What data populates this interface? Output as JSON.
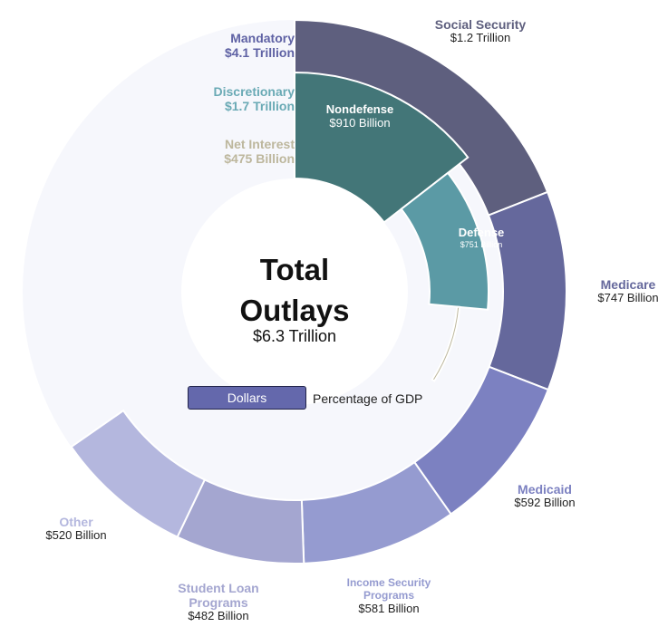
{
  "chart_data": {
    "type": "pie",
    "center": {
      "title_line1": "Total",
      "title_line2": "Outlays",
      "value": "$6.3 Trillion"
    },
    "toggle": {
      "active": "Dollars",
      "inactive": "Percentage of GDP"
    },
    "groups": [
      {
        "name": "Mandatory",
        "value_label": "$4.1 Trillion",
        "value": 4.1,
        "color": "#5f62a4"
      },
      {
        "name": "Discretionary",
        "value_label": "$1.7 Trillion",
        "value": 1.7,
        "color": "#6aaab5"
      },
      {
        "name": "Net Interest",
        "value_label": "$475 Billion",
        "value": 0.475,
        "color": "#bdb79d"
      }
    ],
    "inner_ring": [
      {
        "name": "Nondefense",
        "value_label": "$910 Billion",
        "value": 0.91,
        "color": "#437678"
      },
      {
        "name": "Defense",
        "value_label": "$751 Billion",
        "value": 0.751,
        "color": "#5b9aa5"
      },
      {
        "name": "Net Interest",
        "value_label": "$475 Billion",
        "value": 0.475,
        "color": "#bdb79d"
      }
    ],
    "outer_ring": [
      {
        "name": "Social Security",
        "value_label": "$1.2 Trillion",
        "value": 1.2,
        "color": "#5e5f7e"
      },
      {
        "name": "Medicare",
        "value_label": "$747 Billion",
        "value": 0.747,
        "color": "#65689c"
      },
      {
        "name": "Medicaid",
        "value_label": "$592 Billion",
        "value": 0.592,
        "color": "#7c81c1"
      },
      {
        "name": "Income Security Programs",
        "value_label": "$581 Billion",
        "value": 0.581,
        "color": "#959bd0"
      },
      {
        "name": "Student Loan Programs",
        "value_label": "$482 Billion",
        "value": 0.482,
        "color": "#a4a6d0"
      },
      {
        "name": "Other",
        "value_label": "$520 Billion",
        "value": 0.52,
        "color": "#b4b7de"
      }
    ],
    "background_ring_color": "#f6f7fc",
    "divider_color": "#ffffff"
  }
}
